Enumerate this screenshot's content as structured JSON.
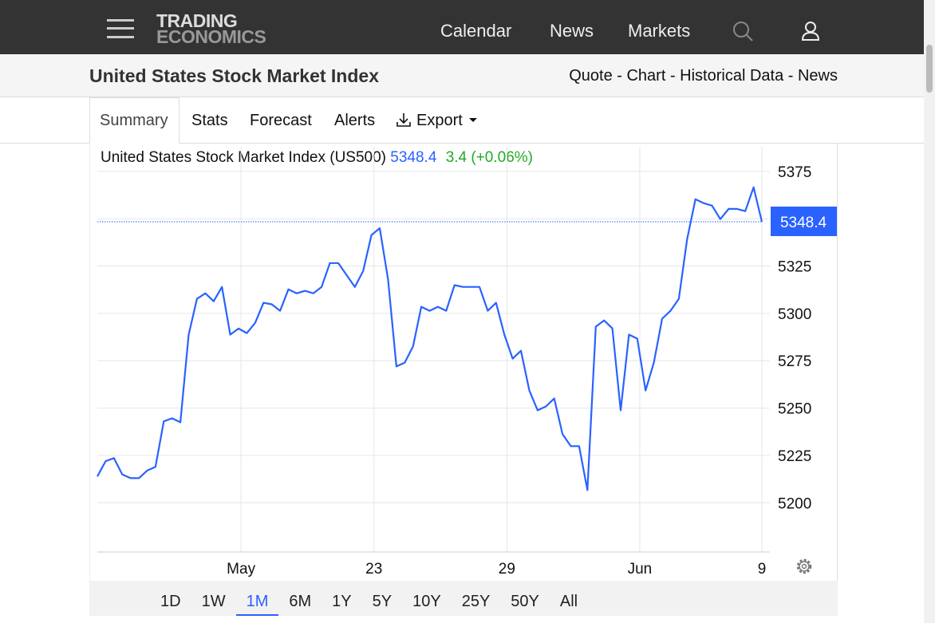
{
  "header": {
    "logo": [
      "TRADING",
      "ECONOMICS"
    ],
    "nav": [
      "Calendar",
      "News",
      "Markets"
    ]
  },
  "title_bar": {
    "title": "United States Stock Market Index",
    "links": "Quote - Chart - Historical Data - News"
  },
  "tabs": {
    "items": [
      "Summary",
      "Stats",
      "Forecast",
      "Alerts",
      "Export"
    ],
    "active": 0
  },
  "chart_data": {
    "type": "line",
    "title": "United States Stock Market Index (US500)",
    "last": 5348.4,
    "change": "3.4 (+0.06%)",
    "color": "#2962ff",
    "values": [
      5213.9,
      5222,
      5223.6,
      5215,
      5213,
      5213,
      5217,
      5219,
      5243,
      5244.6,
      5242.5,
      5288.8,
      5307.7,
      5310.6,
      5306.4,
      5314,
      5288.8,
      5292,
      5289.6,
      5295,
      5305.6,
      5304.8,
      5301.4,
      5312.7,
      5310.6,
      5311.9,
      5310.6,
      5314,
      5326.6,
      5326.6,
      5320.3,
      5314,
      5322.4,
      5341.4,
      5345,
      5318,
      5272,
      5274,
      5282.5,
      5303.5,
      5301.4,
      5303.5,
      5301.4,
      5314.9,
      5314,
      5314,
      5314,
      5301.4,
      5305.6,
      5288.8,
      5276.1,
      5280.3,
      5259.3,
      5248.8,
      5250.9,
      5255.1,
      5236.2,
      5229.9,
      5229.9,
      5206.7,
      5293,
      5296.3,
      5292.1,
      5248.8,
      5288.8,
      5286.7,
      5259.3,
      5274,
      5297.2,
      5301.4,
      5307.7,
      5339.2,
      5360.3,
      5358.2,
      5356.9,
      5349.8,
      5355.2,
      5355.2,
      5354,
      5366.6,
      5348.4
    ],
    "xlim": [
      0,
      80
    ],
    "xticks": [
      {
        "value": 17.3,
        "label": "May"
      },
      {
        "value": 33.3,
        "label": "23"
      },
      {
        "value": 49.3,
        "label": "29"
      },
      {
        "value": 65.3,
        "label": "Jun"
      },
      {
        "value": 80,
        "label": "9"
      }
    ],
    "ylim": [
      5174,
      5388
    ],
    "yticks": [
      5200,
      5225,
      5250,
      5275,
      5300,
      5325,
      5350,
      5375
    ],
    "grid": true
  },
  "ranges": {
    "items": [
      "1D",
      "1W",
      "1M",
      "6M",
      "1Y",
      "5Y",
      "10Y",
      "25Y",
      "50Y",
      "All"
    ],
    "active": 2
  }
}
